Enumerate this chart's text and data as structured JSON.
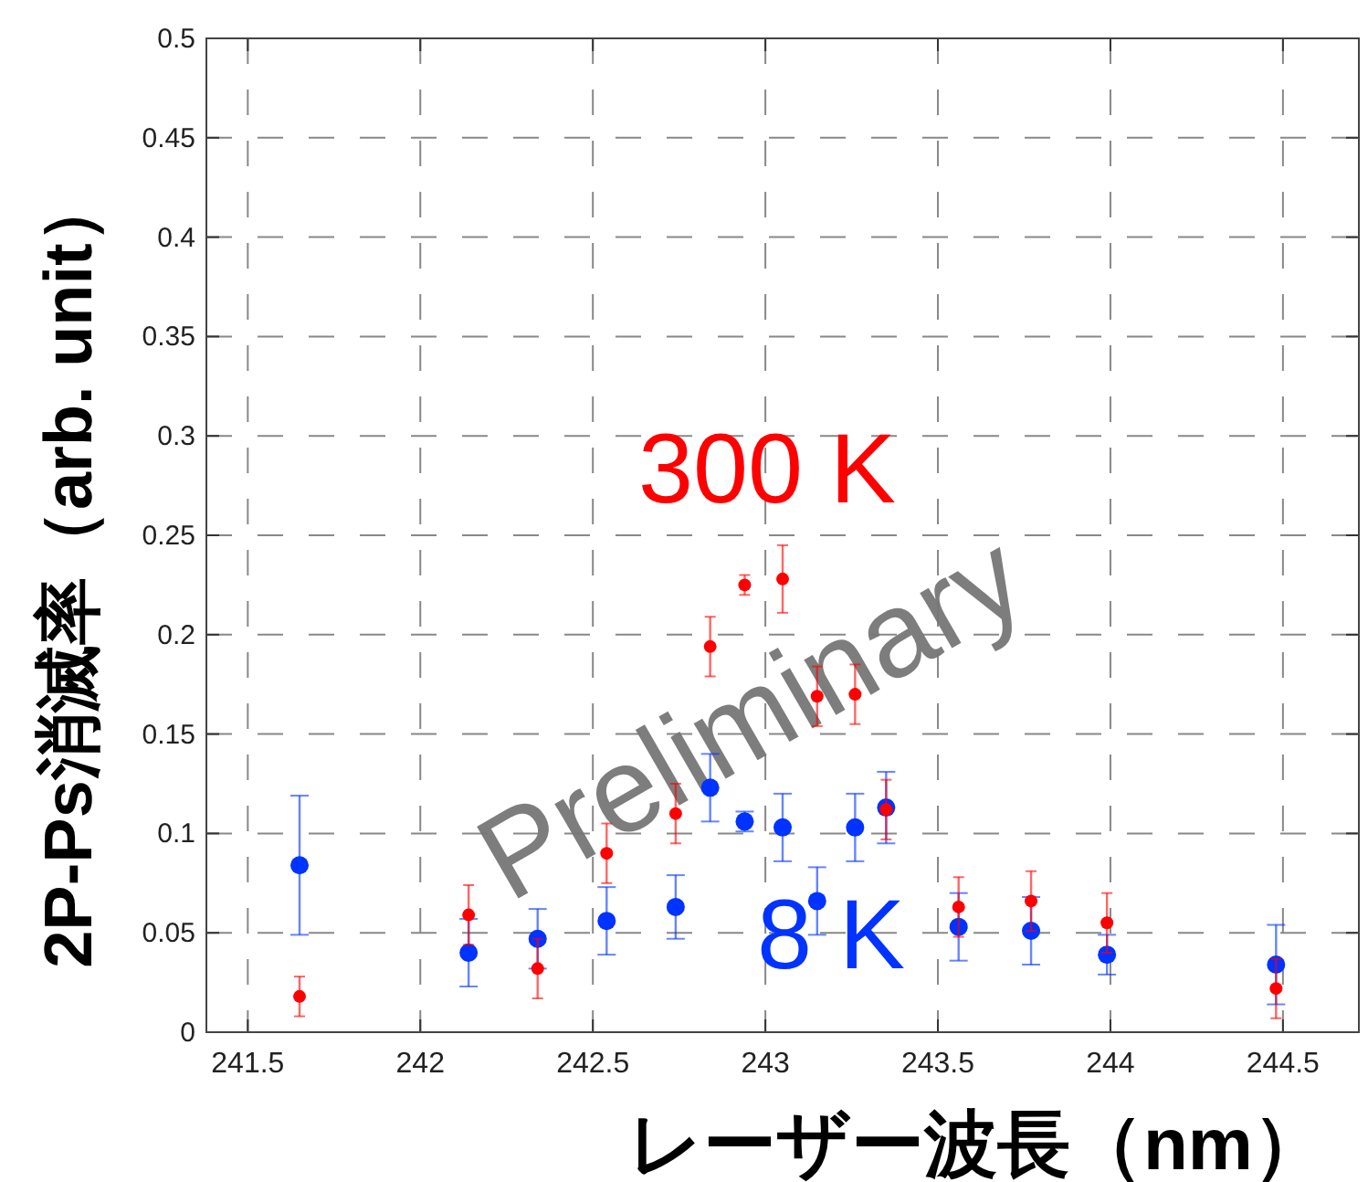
{
  "chart_data": {
    "type": "scatter",
    "xlabel": "レーザー波長（nm）",
    "ylabel": "2P-Ps消滅率（arb. unit）",
    "annotations": [
      "Preliminary"
    ],
    "xlim": [
      241.38,
      244.72
    ],
    "xticks": [
      241.5,
      242,
      242.5,
      243,
      243.5,
      244,
      244.5
    ],
    "ylim": [
      0,
      0.5
    ],
    "yticks": [
      0,
      0.05,
      0.1,
      0.15,
      0.2,
      0.25,
      0.3,
      0.35,
      0.4,
      0.45,
      0.5
    ],
    "grid": true,
    "marker": "circle",
    "series": [
      {
        "name": "300 K",
        "color": "#ff0000",
        "x": [
          241.65,
          242.14,
          242.34,
          242.54,
          242.74,
          242.84,
          242.94,
          243.05,
          243.15,
          243.26,
          243.35,
          243.56,
          243.77,
          243.99,
          244.48
        ],
        "values": [
          0.018,
          0.059,
          0.032,
          0.09,
          0.11,
          0.194,
          0.225,
          0.228,
          0.169,
          0.17,
          0.112,
          0.063,
          0.066,
          0.055,
          0.022
        ],
        "errors": [
          0.01,
          0.015,
          0.015,
          0.015,
          0.015,
          0.015,
          0.005,
          0.017,
          0.015,
          0.015,
          0.015,
          0.015,
          0.015,
          0.015,
          0.015
        ]
      },
      {
        "name": "8 K",
        "color": "#0033ff",
        "x": [
          241.65,
          242.14,
          242.34,
          242.54,
          242.74,
          242.84,
          242.94,
          243.05,
          243.15,
          243.26,
          243.35,
          243.56,
          243.77,
          243.99,
          244.48
        ],
        "values": [
          0.084,
          0.04,
          0.047,
          0.056,
          0.063,
          0.123,
          0.106,
          0.103,
          0.066,
          0.103,
          0.113,
          0.053,
          0.051,
          0.039,
          0.034
        ],
        "errors": [
          0.035,
          0.017,
          0.015,
          0.017,
          0.016,
          0.017,
          0.005,
          0.017,
          0.017,
          0.017,
          0.018,
          0.017,
          0.017,
          0.01,
          0.02
        ]
      }
    ]
  }
}
